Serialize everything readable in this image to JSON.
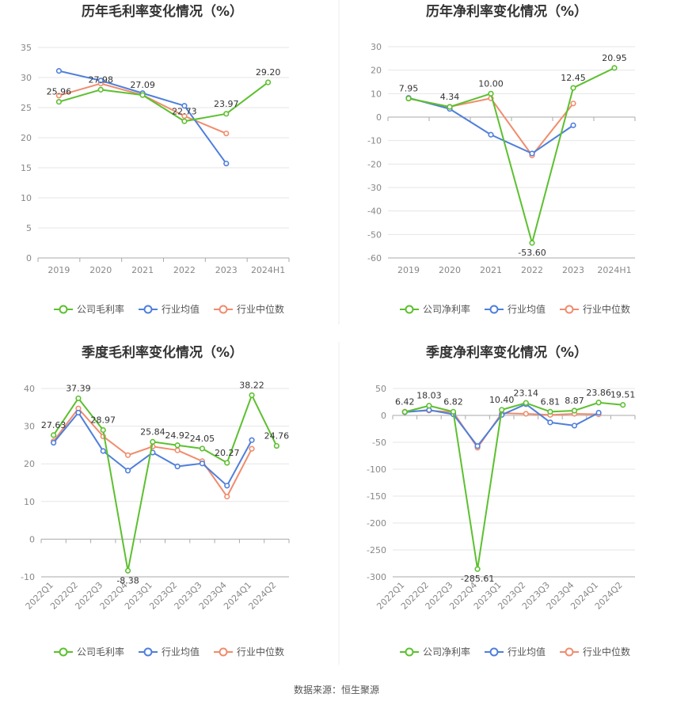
{
  "footer": "数据来源：恒生聚源",
  "colors": {
    "company": "#5cc02f",
    "avg": "#4f7fdb",
    "median": "#f08c6d",
    "grid": "#e6e6e6",
    "axis": "#aaaaaa"
  },
  "chart_data": [
    {
      "type": "line",
      "title": "历年毛利率变化情况（%）",
      "categories": [
        "2019",
        "2020",
        "2021",
        "2022",
        "2023",
        "2024H1"
      ],
      "ylim": [
        0,
        35
      ],
      "yticks": [
        0,
        5,
        10,
        15,
        20,
        25,
        30,
        35
      ],
      "legend_position": "bottom",
      "series": [
        {
          "name": "公司毛利率",
          "color": "company",
          "values": [
            25.96,
            27.98,
            27.09,
            22.73,
            23.97,
            29.2
          ],
          "labels": [
            "25.96",
            "27.98",
            "27.09",
            "22.73",
            "23.97",
            "29.20"
          ]
        },
        {
          "name": "行业均值",
          "color": "avg",
          "values": [
            31.1,
            29.5,
            27.4,
            25.3,
            15.7,
            null
          ]
        },
        {
          "name": "行业中位数",
          "color": "median",
          "values": [
            27.0,
            29.0,
            27.1,
            23.6,
            20.7,
            null
          ]
        }
      ]
    },
    {
      "type": "line",
      "title": "历年净利率变化情况（%）",
      "categories": [
        "2019",
        "2020",
        "2021",
        "2022",
        "2023",
        "2024H1"
      ],
      "ylim": [
        -60,
        30
      ],
      "yticks": [
        -60,
        -50,
        -40,
        -30,
        -20,
        -10,
        0,
        10,
        20,
        30
      ],
      "legend_position": "bottom",
      "series": [
        {
          "name": "公司净利率",
          "color": "company",
          "values": [
            7.95,
            4.34,
            10.0,
            -53.6,
            12.45,
            20.95
          ],
          "labels": [
            "7.95",
            "4.34",
            "10.00",
            "-53.60",
            "12.45",
            "20.95"
          ]
        },
        {
          "name": "行业均值",
          "color": "avg",
          "values": [
            8.2,
            3.5,
            -7.5,
            -15.5,
            -3.5,
            null
          ]
        },
        {
          "name": "行业中位数",
          "color": "median",
          "values": [
            7.9,
            4.4,
            8.0,
            -16.3,
            5.8,
            null
          ]
        }
      ]
    },
    {
      "type": "line",
      "title": "季度毛利率变化情况（%）",
      "categories": [
        "2022Q1",
        "2022Q2",
        "2022Q3",
        "2022Q4",
        "2023Q1",
        "2023Q2",
        "2023Q3",
        "2023Q4",
        "2024Q1",
        "2024Q2"
      ],
      "ylim": [
        -10,
        40
      ],
      "yticks": [
        -10,
        0,
        10,
        20,
        30,
        40
      ],
      "legend_position": "bottom",
      "series": [
        {
          "name": "公司毛利率",
          "color": "company",
          "values": [
            27.63,
            37.39,
            28.97,
            -8.38,
            25.84,
            24.92,
            24.05,
            20.27,
            38.22,
            24.76
          ],
          "labels": [
            "27.63",
            "37.39",
            "28.97",
            "-8.38",
            "25.84",
            "24.92",
            "24.05",
            "20.27",
            "38.22",
            "24.76"
          ]
        },
        {
          "name": "行业均值",
          "color": "avg",
          "values": [
            25.6,
            33.6,
            23.4,
            18.2,
            23.0,
            19.3,
            20.1,
            14.2,
            26.3,
            null
          ]
        },
        {
          "name": "行业中位数",
          "color": "median",
          "values": [
            26.0,
            34.7,
            27.3,
            22.3,
            24.6,
            23.6,
            20.7,
            11.3,
            24.0,
            null
          ]
        }
      ]
    },
    {
      "type": "line",
      "title": "季度净利率变化情况（%）",
      "categories": [
        "2022Q1",
        "2022Q2",
        "2022Q3",
        "2022Q4",
        "2023Q1",
        "2023Q2",
        "2023Q3",
        "2023Q4",
        "2024Q1",
        "2024Q2"
      ],
      "ylim": [
        -300,
        50
      ],
      "yticks": [
        -300,
        -250,
        -200,
        -150,
        -100,
        -50,
        0,
        50
      ],
      "legend_position": "bottom",
      "series": [
        {
          "name": "公司净利率",
          "color": "company",
          "values": [
            6.42,
            18.03,
            6.82,
            -285.61,
            10.4,
            23.14,
            6.81,
            8.87,
            23.86,
            19.51
          ],
          "labels": [
            "6.42",
            "18.03",
            "6.82",
            "-285.61",
            "10.40",
            "23.14",
            "6.81",
            "8.87",
            "23.86",
            "19.51"
          ]
        },
        {
          "name": "行业均值",
          "color": "avg",
          "values": [
            6.0,
            10.0,
            2.0,
            -57.0,
            1.0,
            21.0,
            -13.0,
            -19.0,
            5.0,
            null
          ]
        },
        {
          "name": "行业中位数",
          "color": "median",
          "values": [
            7.0,
            9.0,
            6.0,
            -60.0,
            4.0,
            3.0,
            1.0,
            3.0,
            2.0,
            null
          ]
        }
      ]
    }
  ]
}
